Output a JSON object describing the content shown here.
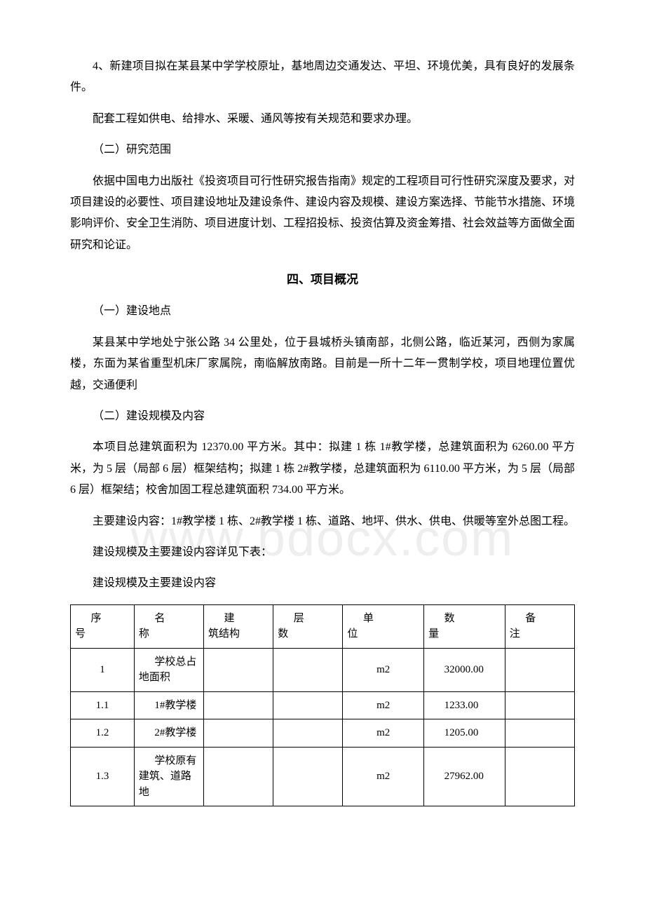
{
  "paragraphs": {
    "p1": "4、新建项目拟在某县某中学学校原址，基地周边交通发达、平坦、环境优美，具有良好的发展条件。",
    "p2": "配套工程如供电、给排水、采暖、通风等按有关规范和要求办理。",
    "p3": "（二）研究范围",
    "p4": "依据中国电力出版社《投资项目可行性研究报告指南》规定的工程项目可行性研究深度及要求，对项目建设的必要性、项目建设地址及建设条件、建设内容及规模、建设方案选择、节能节水措施、环境影响评价、安全卫生消防、项目进度计划、工程招投标、投资估算及资金筹措、社会效益等方面做全面研究和论证。",
    "heading": "四、项目概况",
    "p5": "（一）建设地点",
    "p6": "某县某中学地处宁张公路 34 公里处，位于县城桥头镇南部，北侧公路，临近某河，西侧为家属楼，东面为某省重型机床厂家属院，南临解放南路。目前是一所十二年一贯制学校，项目地理位置优越，交通便利",
    "p7": "（二）建设规模及内容",
    "p8": "本项目总建筑面积为 12370.00 平方米。其中：拟建 1 栋 1#教学楼，总建筑面积为 6260.00 平方米，为 5 层（局部 6 层）框架结构；拟建 1 栋 2#教学楼，总建筑面积为 6110.00 平方米，为 5 层（局部 6 层）框架结；校舍加固工程总建筑面积 734.00 平方米。",
    "p9": "主要建设内容：1#教学楼 1 栋、2#教学楼 1 栋、道路、地坪、供水、供电、供暖等室外总图工程。",
    "p10": "建设规模及主要建设内容详见下表：",
    "p11": "建设规模及主要建设内容"
  },
  "watermark": "www.bdocx.com",
  "table": {
    "headers": {
      "seq": {
        "l1": "序",
        "l2": "号"
      },
      "name": {
        "l1": "名",
        "l2": "称"
      },
      "struct": {
        "l1": "建",
        "l2": "筑结构"
      },
      "floor": {
        "l1": "层",
        "l2": "数"
      },
      "unit": {
        "l1": "单",
        "l2": "位"
      },
      "qty": {
        "l1": "数",
        "l2": "量"
      },
      "note": {
        "l1": "备",
        "l2": "注"
      }
    },
    "rows": [
      {
        "seq": "1",
        "name": "学校总占地面积",
        "struct": "",
        "floor": "",
        "unit": "m2",
        "qty": "32000.00",
        "note": ""
      },
      {
        "seq": "1.1",
        "name": "1#教学楼",
        "struct": "",
        "floor": "",
        "unit": "m2",
        "qty": "1233.00",
        "note": ""
      },
      {
        "seq": "1.2",
        "name": "2#教学楼",
        "struct": "",
        "floor": "",
        "unit": "m2",
        "qty": "1205.00",
        "note": ""
      },
      {
        "seq": "1.3",
        "name": "学校原有建筑、道路地",
        "struct": "",
        "floor": "",
        "unit": "m2",
        "qty": "27962.00",
        "note": ""
      }
    ]
  }
}
